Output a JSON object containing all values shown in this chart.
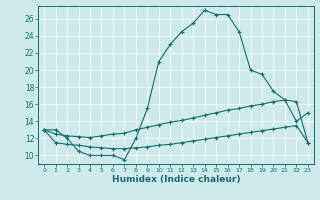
{
  "xlabel": "Humidex (Indice chaleur)",
  "bg_color": "#cceaea",
  "line_color": "#1a6b6b",
  "x_humidex": [
    0,
    1,
    2,
    3,
    4,
    5,
    6,
    7,
    8,
    9,
    10,
    11,
    12,
    13,
    14,
    15,
    16,
    17,
    18,
    19,
    20,
    21,
    22,
    23
  ],
  "y_main": [
    13,
    13,
    12,
    10.5,
    10,
    10,
    10,
    9.5,
    12,
    15.5,
    21,
    23,
    24.5,
    25.5,
    27,
    26.5,
    26.5,
    24.5,
    20,
    19.5,
    17.5,
    16.5,
    14,
    15
  ],
  "y_line1": [
    13,
    12.5,
    12.3,
    12.2,
    12.1,
    12.3,
    12.5,
    12.6,
    13.0,
    13.3,
    13.6,
    13.9,
    14.1,
    14.4,
    14.7,
    15.0,
    15.3,
    15.5,
    15.8,
    16.0,
    16.3,
    16.5,
    16.3,
    11.5
  ],
  "y_line2": [
    13,
    11.5,
    11.3,
    11.2,
    11.0,
    10.9,
    10.8,
    10.8,
    10.9,
    11.0,
    11.2,
    11.3,
    11.5,
    11.7,
    11.9,
    12.1,
    12.3,
    12.5,
    12.7,
    12.9,
    13.1,
    13.3,
    13.5,
    11.5
  ],
  "ylim": [
    9.0,
    27.5
  ],
  "xlim": [
    -0.5,
    23.5
  ],
  "yticks": [
    10,
    12,
    14,
    16,
    18,
    20,
    22,
    24,
    26
  ],
  "xticks": [
    0,
    1,
    2,
    3,
    4,
    5,
    6,
    7,
    8,
    9,
    10,
    11,
    12,
    13,
    14,
    15,
    16,
    17,
    18,
    19,
    20,
    21,
    22,
    23
  ]
}
